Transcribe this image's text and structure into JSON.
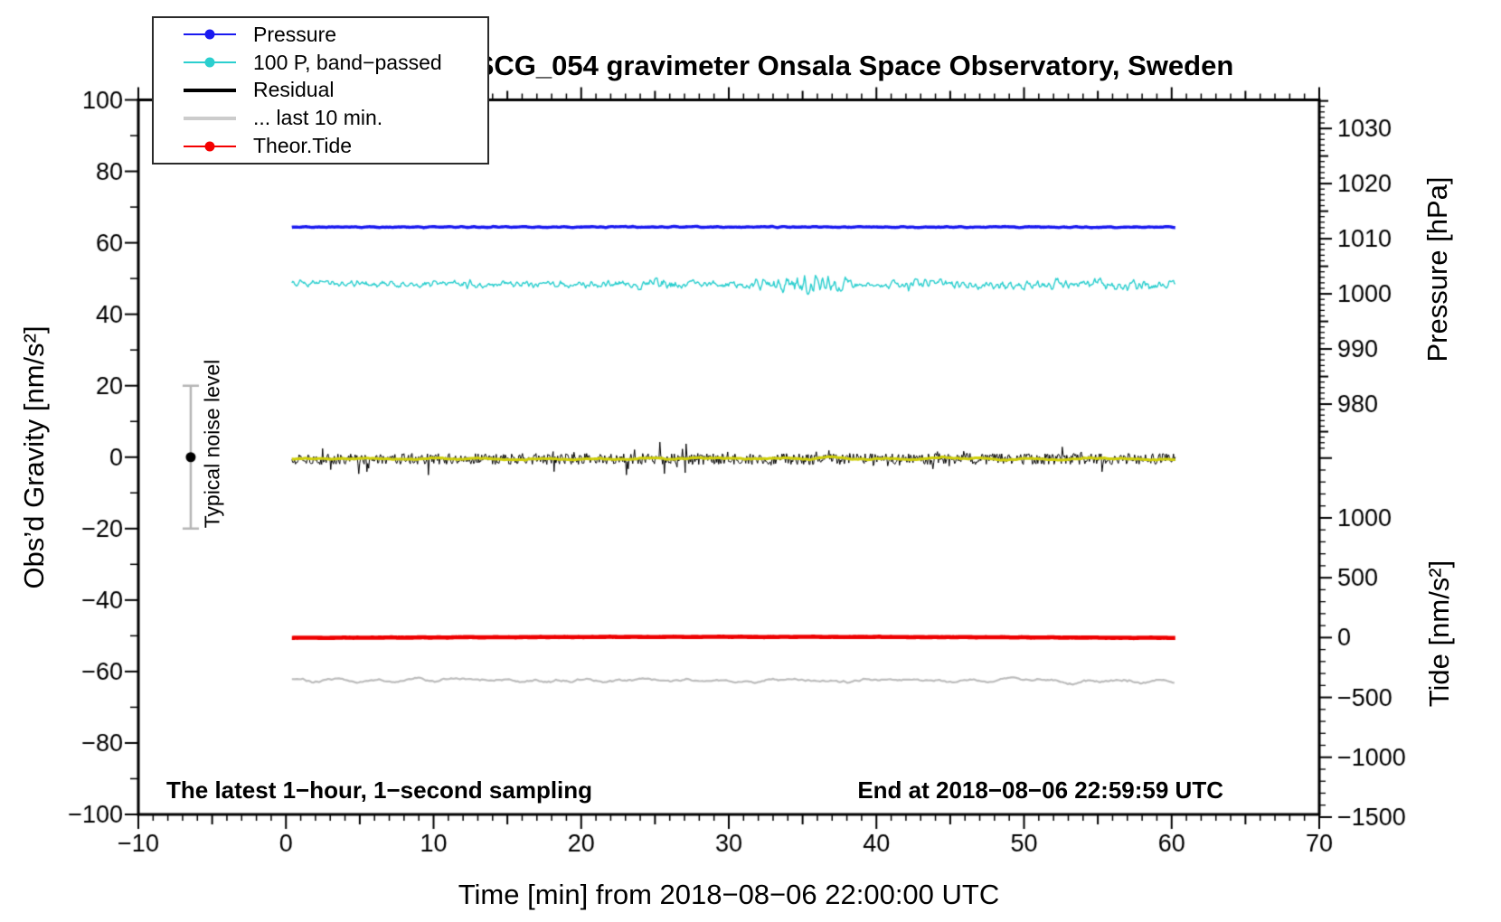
{
  "header": {
    "title": "SCG_054 gravimeter Onsala Space Observatory, Sweden"
  },
  "annotations": {
    "sampling_note": "The latest 1−hour, 1−second sampling",
    "end_time_note": "End at 2018−08−06 22:59:59 UTC",
    "noise_label": "Typical noise level"
  },
  "legend": {
    "items": [
      {
        "label": "Pressure",
        "color": "#1A1AF0",
        "style": "line-dot"
      },
      {
        "label": "100 P, band−passed",
        "color": "#2BCFCF",
        "style": "line-dot"
      },
      {
        "label": "Residual",
        "color": "#000000",
        "style": "thick"
      },
      {
        "label": "... last 10 min.",
        "color": "#CCCCCC",
        "style": "thick"
      },
      {
        "label": "Theor.Tide",
        "color": "#F40000",
        "style": "line-dot"
      }
    ]
  },
  "chart_data": {
    "type": "line",
    "title": "SCG_054 gravimeter Onsala Space Observatory, Sweden",
    "x_axis": {
      "label": "Time [min] from 2018−08−06 22:00:00 UTC",
      "range": [
        -10,
        70
      ],
      "major_ticks": [
        {
          "value": -10,
          "label": "−10"
        },
        {
          "value": 0,
          "label": "0"
        },
        {
          "value": 10,
          "label": "10"
        },
        {
          "value": 20,
          "label": "20"
        },
        {
          "value": 30,
          "label": "30"
        },
        {
          "value": 40,
          "label": "40"
        },
        {
          "value": 50,
          "label": "50"
        },
        {
          "value": 60,
          "label": "60"
        },
        {
          "value": 70,
          "label": "70"
        }
      ],
      "minor_step": 1,
      "medium_step": 5
    },
    "y_left": {
      "label": "Obs’d Gravity [nm/s²]",
      "range": [
        -100,
        100
      ],
      "major_ticks": [
        {
          "value": 100,
          "label": "100"
        },
        {
          "value": 80,
          "label": "80"
        },
        {
          "value": 60,
          "label": "60"
        },
        {
          "value": 40,
          "label": "40"
        },
        {
          "value": 20,
          "label": "20"
        },
        {
          "value": 0,
          "label": "0"
        },
        {
          "value": -20,
          "label": "−20"
        },
        {
          "value": -40,
          "label": "−40"
        },
        {
          "value": -60,
          "label": "−60"
        },
        {
          "value": -80,
          "label": "−80"
        },
        {
          "value": -100,
          "label": "−100"
        }
      ],
      "minor_step": 10
    },
    "pressure_axis": {
      "label": "Pressure [hPa]",
      "major_ticks": [
        {
          "value": 1030,
          "label": "1030"
        },
        {
          "value": 1020,
          "label": "1020"
        },
        {
          "value": 1010,
          "label": "1010"
        },
        {
          "value": 1000,
          "label": "1000"
        },
        {
          "value": 990,
          "label": "990"
        },
        {
          "value": 980,
          "label": "980"
        }
      ],
      "minor_step": 1,
      "medium_step": 5,
      "minor_range": [
        972,
        1035
      ],
      "ref_value": 1030,
      "ref_gravity": 92.0,
      "gravity_per_unit": 1.543
    },
    "tide_axis": {
      "label": "Tide [nm/s²]",
      "major_ticks": [
        {
          "value": 1000,
          "label": "1000"
        },
        {
          "value": 500,
          "label": "500"
        },
        {
          "value": 0,
          "label": "0"
        },
        {
          "value": -500,
          "label": "−500"
        },
        {
          "value": -1000,
          "label": "−1000"
        },
        {
          "value": -1500,
          "label": "−1500"
        }
      ],
      "minor_step": 100,
      "minor_range": [
        -1500,
        1500
      ],
      "ref_value": 1000,
      "ref_gravity": -17.0,
      "gravity_per_unit": 0.0335
    },
    "data_span_min": [
      0.4,
      60.25
    ],
    "series": [
      {
        "name": "Pressure",
        "color": "#1A1AF0",
        "kind": "smooth",
        "level_gravity": 64.4,
        "approx_value_own_axis": "1012 hPa",
        "noise_amp": 0.22,
        "smooth": 6,
        "line_width": 3.4,
        "seed": 11
      },
      {
        "name": "100 P, band−passed",
        "color": "#2BCFCF",
        "kind": "smooth",
        "level_gravity": 48.4,
        "noise_amp": 1.3,
        "smooth": 3,
        "line_width": 1.4,
        "seed": 22,
        "bursts": [
          {
            "t": 25.5,
            "gain": 1.6,
            "width": 1.0
          },
          {
            "t": 34.3,
            "gain": 2.5,
            "width": 1.6
          },
          {
            "t": 36.6,
            "gain": 3.1,
            "width": 1.0
          },
          {
            "t": 42.8,
            "gain": 1.7,
            "width": 1.2
          },
          {
            "t": 47.0,
            "gain": 1.5,
            "width": 1.2
          },
          {
            "t": 51.5,
            "gain": 1.6,
            "width": 1.5
          },
          {
            "t": 55.5,
            "gain": 1.5,
            "width": 1.0
          },
          {
            "t": 58.3,
            "gain": 1.9,
            "width": 1.0
          }
        ]
      },
      {
        "name": "Residual",
        "color": "#000000",
        "kind": "spiky",
        "level_gravity": -0.5,
        "noise_amp": 1.55,
        "spike_amp": 2.2,
        "spike_prob": 0.05,
        "line_width": 1.0,
        "seed": 33
      },
      {
        "name": "Residual low-passed (unlabeled)",
        "color": "#CFCF0A",
        "kind": "smooth",
        "level_gravity": -0.45,
        "noise_amp": 0.62,
        "smooth": 28,
        "line_width": 3.0,
        "seed": 44
      },
      {
        "name": "Theor.Tide",
        "color": "#EE0000",
        "kind": "smooth",
        "level_gravity": -50.6,
        "approx_value_own_axis": "10 nm/s² (tide axis)",
        "noise_amp": 0.08,
        "smooth": 10,
        "bow": 0.3,
        "line_width": 4.6,
        "seed": 55
      },
      {
        "name": "... last 10 min.",
        "color": "#BDBDBD",
        "kind": "smooth",
        "level_gravity": -62.6,
        "noise_amp": 1.05,
        "smooth": 9,
        "step": 2,
        "line_width": 2.2,
        "seed": 66
      }
    ],
    "noise_marker": {
      "label": "Typical noise level",
      "t_min": -6.45,
      "center_gravity": 0,
      "half_range_gravity": 20,
      "bar_color": "#B5B5B5",
      "dot_color": "#000000"
    },
    "grid": "off",
    "legend_position": "top-left"
  }
}
